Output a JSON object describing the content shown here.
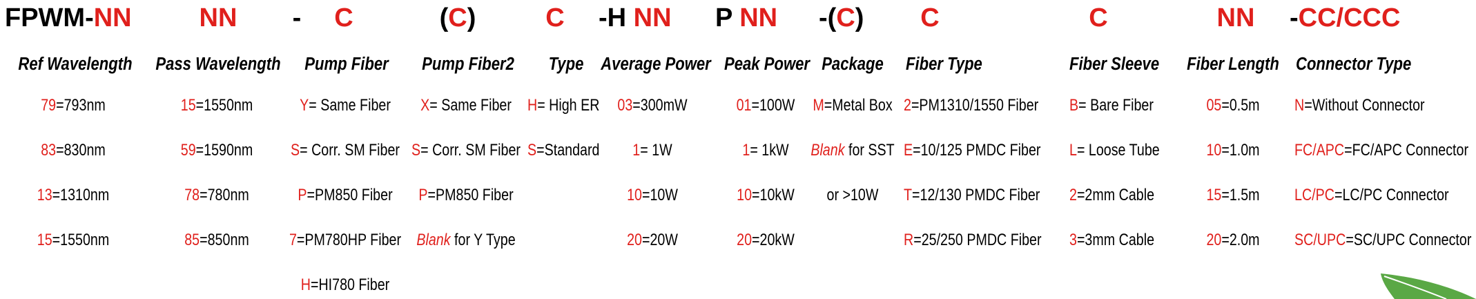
{
  "header": [
    {
      "parts": [
        {
          "text": "FPWM-",
          "color": "#000000"
        },
        {
          "text": "NN",
          "color": "#e0201c"
        }
      ]
    },
    {
      "parts": [
        {
          "text": "NN",
          "color": "#e0201c"
        }
      ]
    },
    {
      "parts": [
        {
          "text": "-",
          "color": "#000000"
        }
      ]
    },
    {
      "parts": [
        {
          "text": "C",
          "color": "#e0201c"
        }
      ]
    },
    {
      "parts": [
        {
          "text": "(",
          "color": "#000000"
        },
        {
          "text": "C",
          "color": "#e0201c"
        },
        {
          "text": ")",
          "color": "#000000"
        }
      ]
    },
    {
      "parts": [
        {
          "text": "C",
          "color": "#e0201c"
        }
      ]
    },
    {
      "parts": [
        {
          "text": "-H ",
          "color": "#000000"
        },
        {
          "text": "NN",
          "color": "#e0201c"
        }
      ]
    },
    {
      "parts": [
        {
          "text": "P ",
          "color": "#000000"
        },
        {
          "text": "NN",
          "color": "#e0201c"
        }
      ]
    },
    {
      "parts": [
        {
          "text": "-(",
          "color": "#000000"
        },
        {
          "text": "C",
          "color": "#e0201c"
        },
        {
          "text": ")",
          "color": "#000000"
        }
      ]
    },
    {
      "parts": [
        {
          "text": "C",
          "color": "#e0201c"
        }
      ]
    },
    {
      "parts": [
        {
          "text": "C",
          "color": "#e0201c"
        }
      ]
    },
    {
      "parts": [
        {
          "text": "NN",
          "color": "#e0201c"
        }
      ]
    },
    {
      "parts": [
        {
          "text": "-",
          "color": "#000000"
        },
        {
          "text": "CC/CCC",
          "color": "#e0201c"
        }
      ]
    }
  ],
  "columns": [
    {
      "title": "Ref Wavelength",
      "entries": [
        {
          "code": "79",
          "text": "=793nm"
        },
        {
          "code": "83",
          "text": "=830nm"
        },
        {
          "code": "13",
          "text": "=1310nm"
        },
        {
          "code": "15",
          "text": "=1550nm"
        }
      ]
    },
    {
      "title": "Pass Wavelength",
      "entries": [
        {
          "code": "15",
          "text": "=1550nm"
        },
        {
          "code": "59",
          "text": "=1590nm"
        },
        {
          "code": "78",
          "text": "=780nm"
        },
        {
          "code": "85",
          "text": "=850nm"
        }
      ]
    },
    {
      "title": "Pump Fiber",
      "entries": [
        {
          "code": "Y",
          "text": "= Same Fiber"
        },
        {
          "code": "S",
          "text": "= Corr. SM Fiber"
        },
        {
          "code": "P",
          "text": "=PM850 Fiber"
        },
        {
          "code": "7",
          "text": "=PM780HP Fiber"
        },
        {
          "code": "H",
          "text": "=HI780 Fiber"
        }
      ]
    },
    {
      "title": "Pump Fiber2",
      "entries": [
        {
          "code": "X",
          "text": "= Same Fiber"
        },
        {
          "code": "S",
          "text": "= Corr. SM Fiber"
        },
        {
          "code": "P",
          "text": "=PM850 Fiber"
        },
        {
          "code": "Blank",
          "text": " for Y Type",
          "italic": true
        }
      ]
    },
    {
      "title": "Type",
      "entries": [
        {
          "code": "H",
          "text": "= High ER"
        },
        {
          "code": "S",
          "text": "=Standard"
        }
      ]
    },
    {
      "title": "Average Power",
      "entries": [
        {
          "code": "03",
          "text": "=300mW"
        },
        {
          "code": "1",
          "text": "= 1W"
        },
        {
          "code": "10",
          "text": "=10W"
        },
        {
          "code": "20",
          "text": "=20W"
        }
      ]
    },
    {
      "title": "Peak Power",
      "entries": [
        {
          "code": "01",
          "text": "=100W"
        },
        {
          "code": "1",
          "text": "= 1kW"
        },
        {
          "code": "10",
          "text": "=10kW"
        },
        {
          "code": "20",
          "text": "=20kW"
        }
      ]
    },
    {
      "title": "Package",
      "entries": [
        {
          "code": "M",
          "text": "=Metal Box"
        },
        {
          "code": "Blank",
          "text": " for SST",
          "italic": true
        },
        {
          "text": "or >10W"
        }
      ]
    },
    {
      "title": "Fiber Type",
      "entries": [
        {
          "code": "2",
          "text": "=PM1310/1550 Fiber"
        },
        {
          "code": "E",
          "text": "=10/125 PMDC Fiber"
        },
        {
          "code": "T",
          "text": "=12/130 PMDC Fiber"
        },
        {
          "code": "R",
          "text": "=25/250 PMDC Fiber"
        }
      ]
    },
    {
      "title": "Fiber Sleeve",
      "entries": [
        {
          "code": "B",
          "text": "= Bare Fiber"
        },
        {
          "code": "L",
          "text": "= Loose Tube"
        },
        {
          "code": "2",
          "text": "=2mm Cable"
        },
        {
          "code": "3",
          "text": "=3mm Cable"
        }
      ]
    },
    {
      "title": "Fiber Length",
      "entries": [
        {
          "code": "05",
          "text": "=0.5m"
        },
        {
          "code": "10",
          "text": "=1.0m"
        },
        {
          "code": "15",
          "text": "=1.5m"
        },
        {
          "code": "20",
          "text": "=2.0m"
        }
      ]
    },
    {
      "title": "Connector Type",
      "entries": [
        {
          "code": "N",
          "text": "=Without Connector"
        },
        {
          "code": "FC/APC",
          "text": "=FC/APC Connector"
        },
        {
          "code": "LC/PC",
          "text": "=LC/PC Connector"
        },
        {
          "code": "SC/UPC",
          "text": "=SC/UPC Connector"
        }
      ]
    }
  ]
}
